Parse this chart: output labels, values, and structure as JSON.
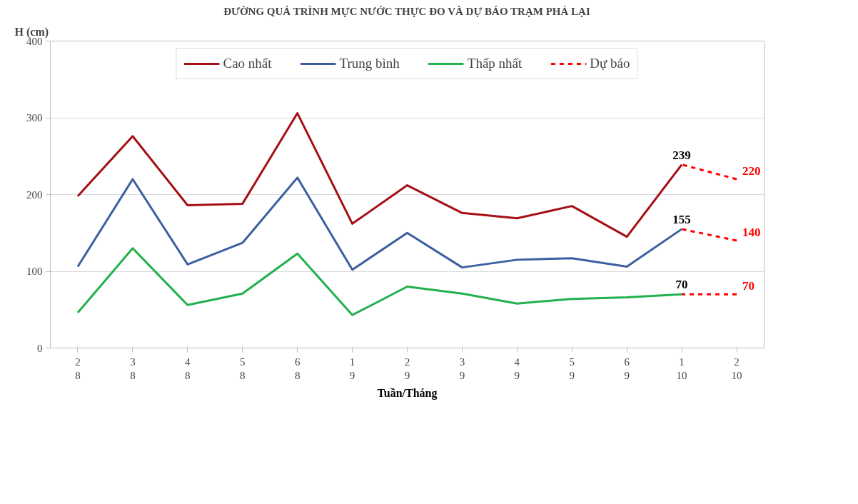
{
  "chart_data": {
    "type": "line",
    "title": "ĐƯỜNG QUÁ TRÌNH MỰC NƯỚC THỰC ĐO VÀ DỰ BÁO TRẠM PHẢ LẠI",
    "xlabel": "Tuần/Tháng",
    "ylabel": "H (cm)",
    "categories": [
      "2\n8",
      "3\n8",
      "4\n8",
      "5\n8",
      "6\n8",
      "1\n9",
      "2\n9",
      "3\n9",
      "4\n9",
      "5\n9",
      "6\n9",
      "1\n10",
      "2\n10"
    ],
    "series": [
      {
        "name": "Cao nhất",
        "color": "#a50f15",
        "values": [
          198,
          276,
          186,
          188,
          306,
          162,
          212,
          176,
          169,
          185,
          145,
          239,
          null
        ],
        "value_labels": [
          null,
          null,
          null,
          null,
          null,
          null,
          null,
          null,
          null,
          null,
          null,
          "239",
          null
        ]
      },
      {
        "name": "Trung bình",
        "color": "#3c5fa0",
        "values": [
          106,
          220,
          109,
          137,
          222,
          102,
          150,
          105,
          115,
          117,
          106,
          155,
          null
        ],
        "value_labels": [
          null,
          null,
          null,
          null,
          null,
          null,
          null,
          null,
          null,
          null,
          null,
          "155",
          null
        ]
      },
      {
        "name": "Thấp nhất",
        "color": "#22b14c",
        "values": [
          46,
          130,
          56,
          71,
          123,
          43,
          80,
          71,
          58,
          64,
          66,
          70,
          null
        ],
        "value_labels": [
          null,
          null,
          null,
          null,
          null,
          null,
          null,
          null,
          null,
          null,
          null,
          "70",
          null
        ]
      },
      {
        "name": "Dự báo",
        "color": "#ff0000",
        "line_style": "dashed",
        "values": [
          null,
          null,
          null,
          null,
          null,
          null,
          null,
          null,
          null,
          null,
          null,
          239,
          220
        ],
        "value_labels": [
          null,
          null,
          null,
          null,
          null,
          null,
          null,
          null,
          null,
          null,
          null,
          null,
          "220"
        ]
      },
      {
        "color": "#ff0000",
        "line_style": "dashed",
        "values": [
          null,
          null,
          null,
          null,
          null,
          null,
          null,
          null,
          null,
          null,
          null,
          155,
          140
        ],
        "value_labels": [
          null,
          null,
          null,
          null,
          null,
          null,
          null,
          null,
          null,
          null,
          null,
          null,
          "140"
        ]
      },
      {
        "color": "#ff0000",
        "line_style": "dashed",
        "values": [
          null,
          null,
          null,
          null,
          null,
          null,
          null,
          null,
          null,
          null,
          null,
          70,
          70
        ],
        "value_labels": [
          null,
          null,
          null,
          null,
          null,
          null,
          null,
          null,
          null,
          null,
          null,
          null,
          "70"
        ]
      }
    ],
    "ylim": [
      0,
      400
    ],
    "yticks": [
      0,
      100,
      200,
      300,
      400
    ],
    "grid": "y",
    "legend": "top"
  }
}
